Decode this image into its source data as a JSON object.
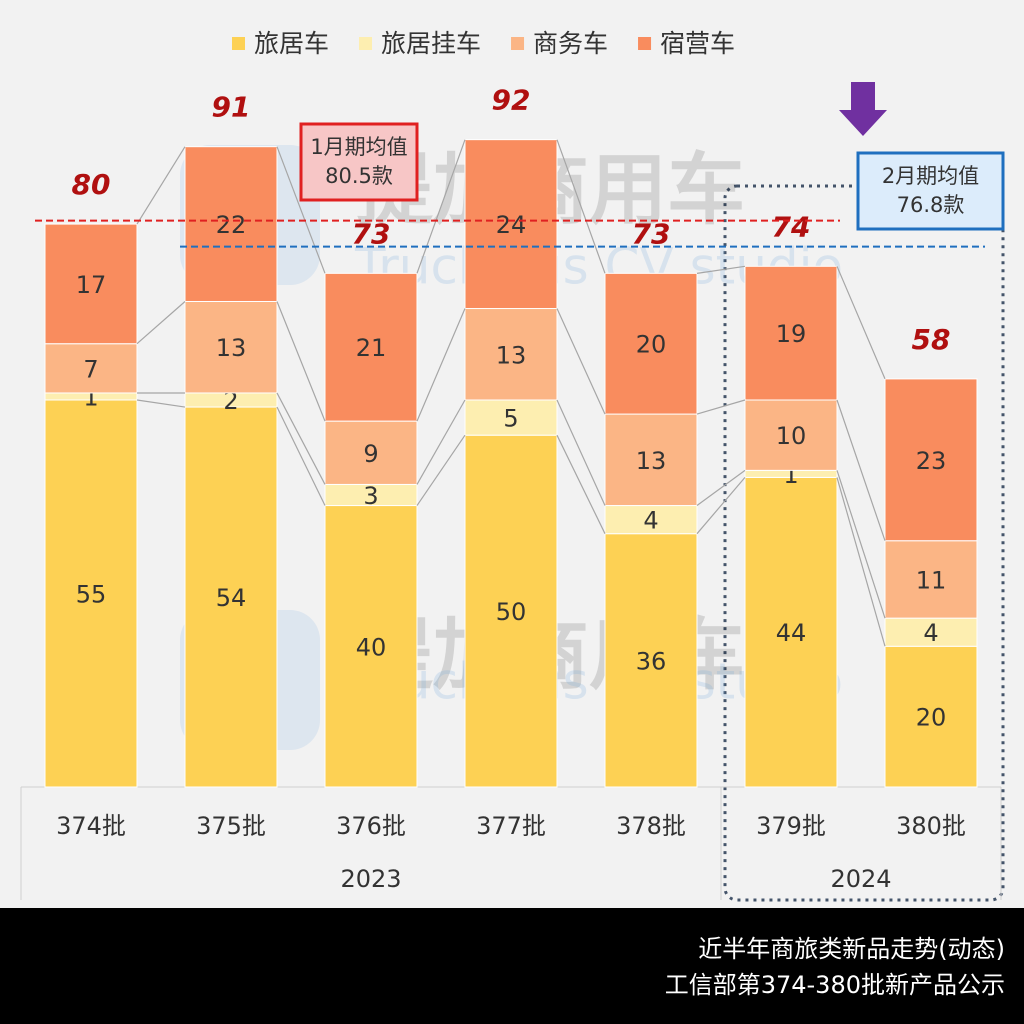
{
  "chart_data": {
    "type": "stacked_bar",
    "categories": [
      "374批",
      "375批",
      "376批",
      "377批",
      "378批",
      "379批",
      "380批"
    ],
    "groups": [
      "2023",
      "2024"
    ],
    "series": [
      {
        "name": "旅居车",
        "color": "#fdd154",
        "values": [
          55,
          54,
          40,
          50,
          36,
          44,
          20
        ]
      },
      {
        "name": "旅居挂车",
        "color": "#fdeeb0",
        "values": [
          1,
          2,
          3,
          5,
          4,
          1,
          4
        ]
      },
      {
        "name": "商务车",
        "color": "#fbb585",
        "values": [
          7,
          13,
          9,
          13,
          13,
          10,
          11
        ]
      },
      {
        "name": "宿营车",
        "color": "#f98c5e",
        "values": [
          17,
          22,
          21,
          24,
          20,
          19,
          23
        ]
      }
    ],
    "totals": [
      80,
      91,
      73,
      92,
      73,
      74,
      58
    ],
    "ylim": [
      0,
      110
    ],
    "reference_lines": [
      {
        "value": 80.5,
        "label": "1月期均值",
        "value_label": "80.5款",
        "color": "#e02020"
      },
      {
        "value": 76.8,
        "label": "2月期均值",
        "value_label": "76.8款",
        "color": "#1f6fbf"
      }
    ],
    "watermark": {
      "name": "提加商用车",
      "subtitle": "TruckPlus CV studio"
    },
    "footer": [
      "近半年商旅类新品走势(动态)",
      "工信部第374-380批新产品公示"
    ]
  }
}
